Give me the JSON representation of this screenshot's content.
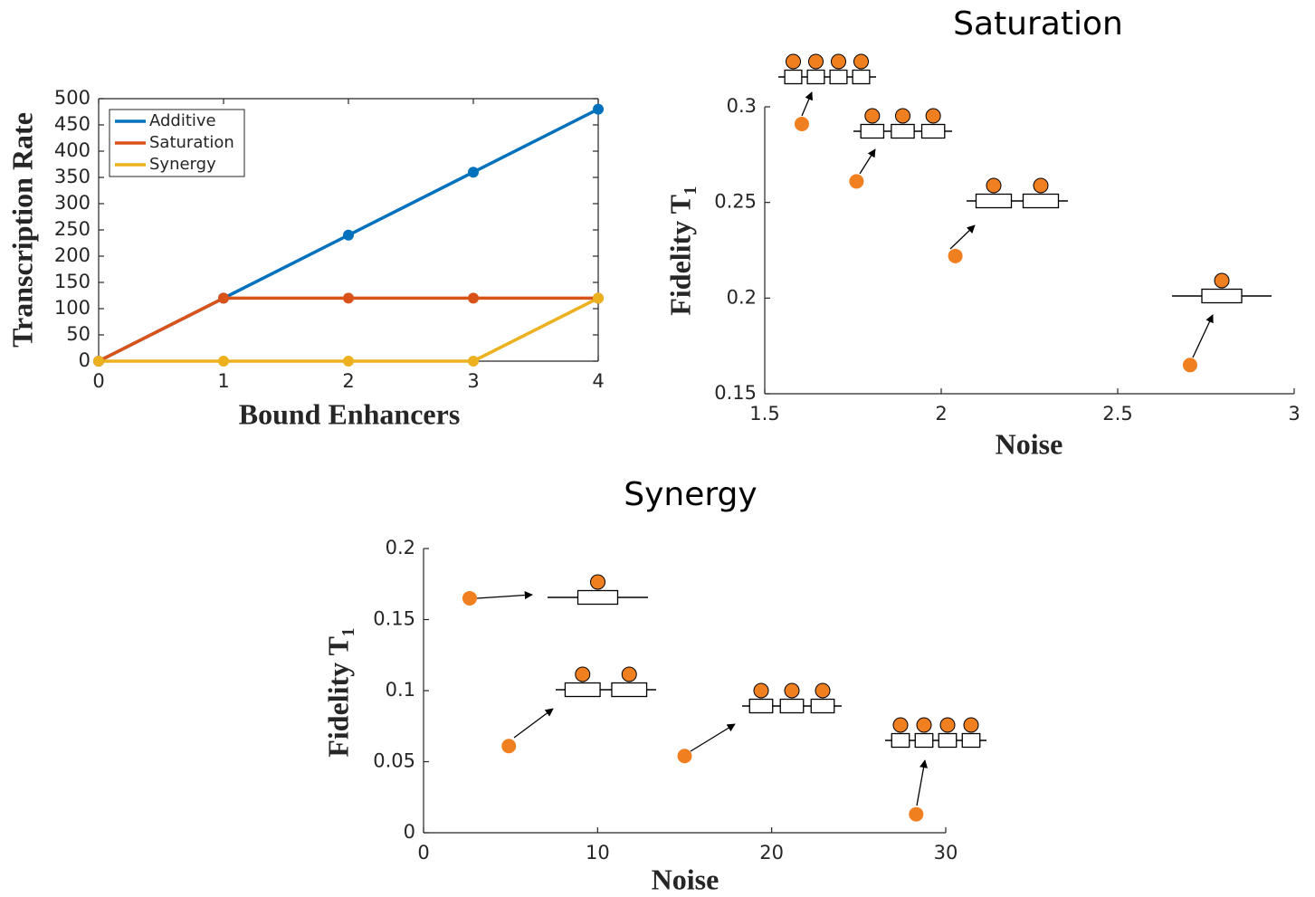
{
  "chart_data": [
    {
      "type": "line",
      "xlabel": "Bound Enhancers",
      "ylabel": "Transcription Rate",
      "x": [
        0,
        1,
        2,
        3,
        4
      ],
      "series": [
        {
          "name": "Additive",
          "color": "#0072bd",
          "values": [
            0,
            120,
            240,
            360,
            480
          ]
        },
        {
          "name": "Saturation",
          "color": "#d95319",
          "values": [
            0,
            120,
            120,
            120,
            120
          ]
        },
        {
          "name": "Synergy",
          "color": "#edb120",
          "values": [
            0,
            0,
            0,
            0,
            120
          ]
        }
      ],
      "xlim": [
        0,
        4
      ],
      "xticks": [
        0,
        1,
        2,
        3,
        4
      ],
      "ylim": [
        0,
        500
      ],
      "yticks": [
        0,
        50,
        100,
        150,
        200,
        250,
        300,
        350,
        400,
        450,
        500
      ],
      "legend": "upper left",
      "box": true
    },
    {
      "type": "scatter",
      "title": "Saturation",
      "xlabel": "Noise",
      "ylabel": "Fidelity T₁",
      "color": "#f07f1f",
      "x": [
        1.605,
        1.76,
        2.04,
        2.705
      ],
      "values": [
        0.291,
        0.261,
        0.222,
        0.165
      ],
      "xlim": [
        1.5,
        3
      ],
      "xticks": [
        1.5,
        2,
        2.5,
        3
      ],
      "ylim": [
        0.15,
        0.3
      ],
      "yticks": [
        0.15,
        0.2,
        0.25,
        0.3
      ],
      "box": false
    },
    {
      "type": "scatter",
      "title": "Synergy",
      "xlabel": "Noise",
      "ylabel": "Fidelity T₁",
      "color": "#f07f1f",
      "x": [
        2.65,
        4.9,
        15.0,
        28.3
      ],
      "values": [
        0.165,
        0.061,
        0.054,
        0.013
      ],
      "xlim": [
        0,
        30
      ],
      "xticks": [
        0,
        10,
        20,
        30
      ],
      "ylim": [
        0,
        0.2
      ],
      "yticks": [
        0,
        0.05,
        0.1,
        0.15,
        0.2
      ],
      "box": false
    }
  ]
}
